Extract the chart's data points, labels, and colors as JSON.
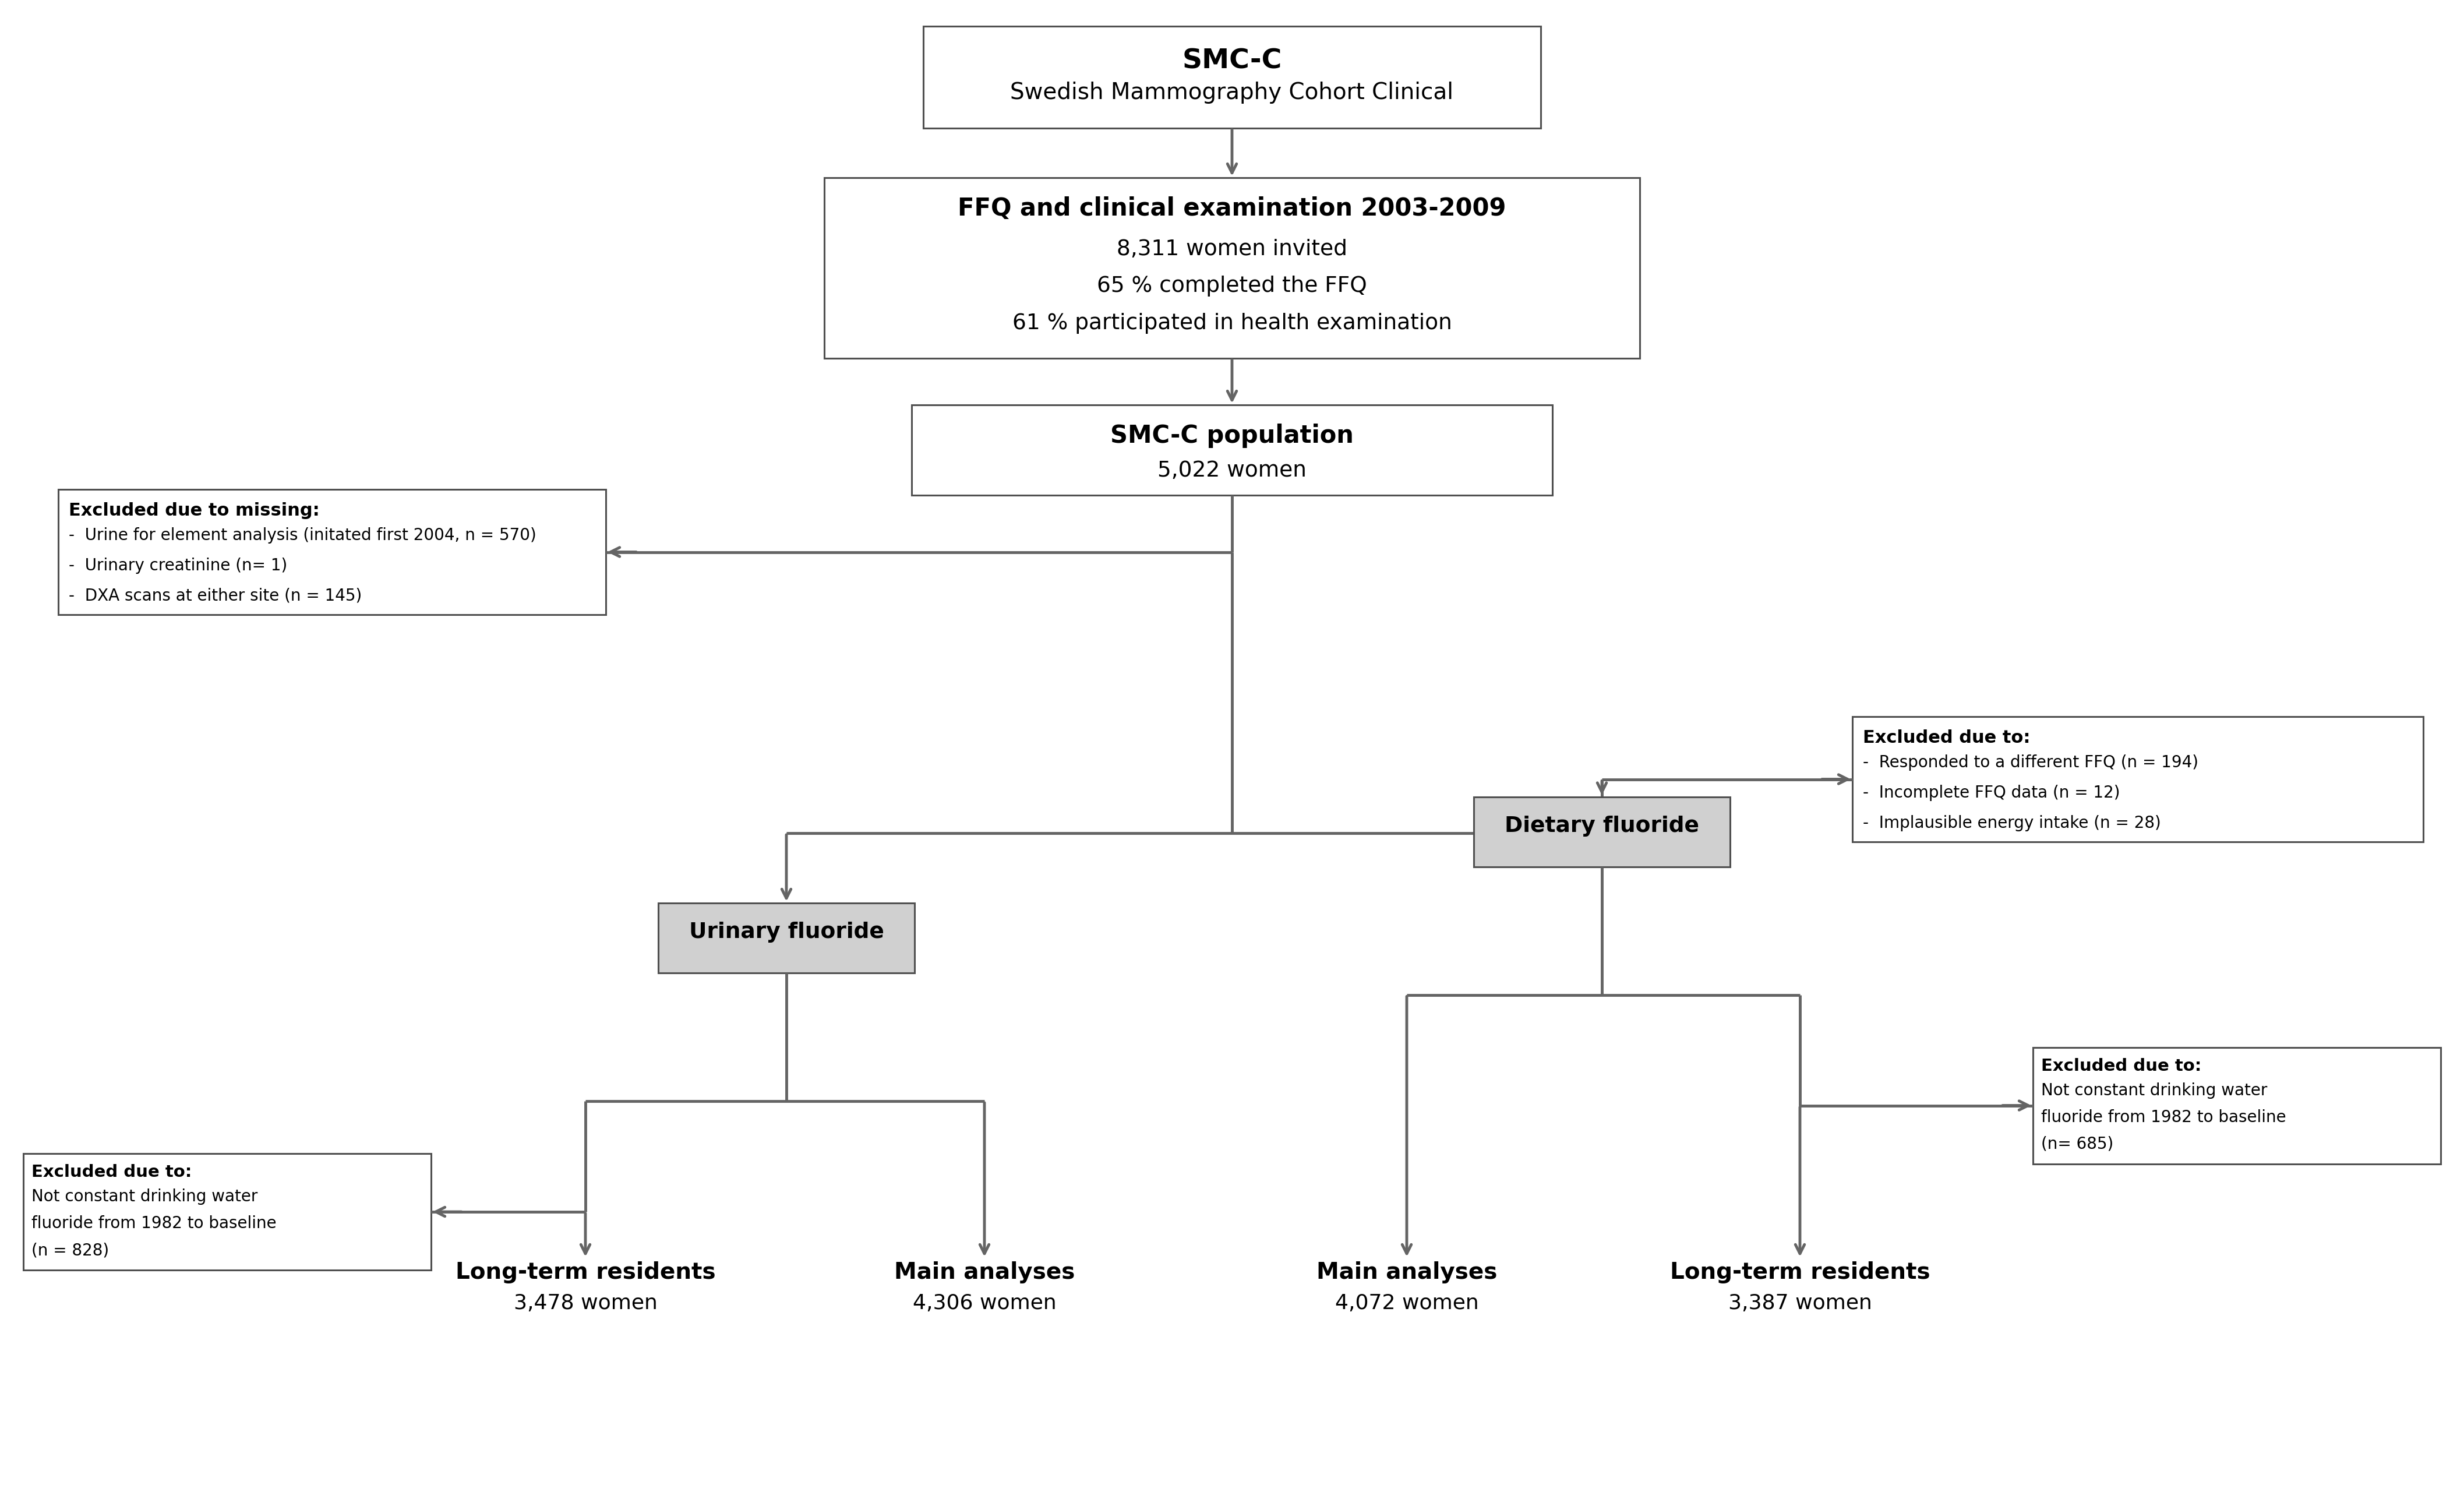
{
  "bg_color": "#ffffff",
  "arrow_color": "#646464",
  "box_edge_color": "#505050",
  "lw": 2.2,
  "arrow_lw": 3.5,
  "mutation_scale": 28,
  "box1_title": "SMC-C",
  "box1_sub": "Swedish Mammography Cohort Clinical",
  "box2_title": "FFQ and clinical examination 2003-2009",
  "box2_lines": [
    "8,311 women invited",
    "65 % completed the FFQ",
    "61 % participated in health examination"
  ],
  "box3_title": "SMC-C population",
  "box3_sub": "5,022 women",
  "excl1_title": "Excluded due to missing:",
  "excl1_lines": [
    "Urine for element analysis (initated first 2004, n = 570)",
    "Urinary creatinine (n= 1)",
    "DXA scans at either site (n = 145)"
  ],
  "excl2_title": "Excluded due to:",
  "excl2_lines": [
    "Responded to a different FFQ (n = 194)",
    "Incomplete FFQ data (n = 12)",
    "Implausible energy intake (n = 28)"
  ],
  "box_uf_label": "Urinary fluoride",
  "box_df_label": "Dietary fluoride",
  "excl3_title": "Excluded due to:",
  "excl3_lines": [
    "Not constant drinking water",
    "fluoride from 1982 to baseline",
    "(n = 828)"
  ],
  "excl4_title": "Excluded due to:",
  "excl4_lines": [
    "Not constant drinking water",
    "fluoride from 1982 to baseline",
    "(n= 685)"
  ],
  "leaf1_title": "Long-term residents",
  "leaf1_sub": "3,478 women",
  "leaf2_title": "Main analyses",
  "leaf2_sub": "4,306 women",
  "leaf3_title": "Main analyses",
  "leaf3_sub": "4,072 women",
  "leaf4_title": "Long-term residents",
  "leaf4_sub": "3,387 women"
}
